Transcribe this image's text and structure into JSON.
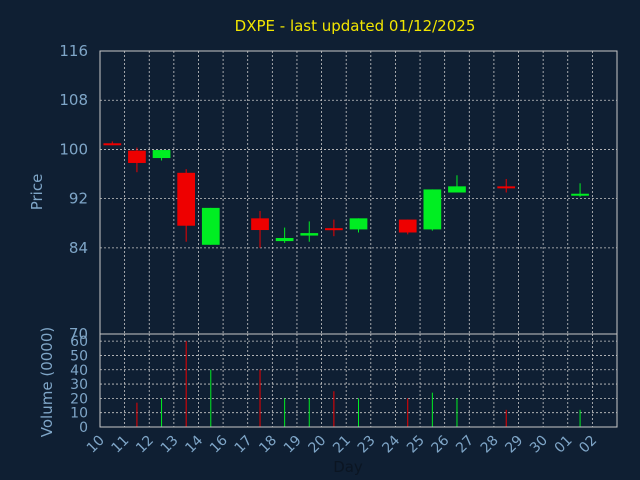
{
  "chart_data": {
    "type": "candlestick",
    "title": "DXPE - last updated 01/12/2025",
    "ylabel": "Price",
    "volume_label": "Volume (0000)",
    "xlabel": "Day",
    "ylim": [
      70,
      116
    ],
    "yticks": [
      70,
      84,
      92,
      100,
      108,
      116
    ],
    "volume_ylim": [
      0,
      65
    ],
    "volume_ticks": [
      0,
      10,
      20,
      30,
      40,
      50,
      60
    ],
    "days": [
      "10",
      "11",
      "12",
      "13",
      "14",
      "16",
      "17",
      "18",
      "19",
      "20",
      "21",
      "23",
      "24",
      "25",
      "26",
      "27",
      "28",
      "29",
      "30",
      "01",
      "02"
    ],
    "grid": true,
    "colors": {
      "up": "#00ee22",
      "down": "#ee0000",
      "background": "#0f1f33",
      "title": "#f2e600",
      "axis_text": "#7fa6c8",
      "grid": "#c8c8c8"
    },
    "candles": [
      {
        "day": "10",
        "open": 101.0,
        "high": 101.3,
        "low": 100.7,
        "close": 100.8,
        "volume": 0
      },
      {
        "day": "11",
        "open": 99.8,
        "high": 100.3,
        "low": 96.3,
        "close": 97.8,
        "volume": 17
      },
      {
        "day": "12",
        "open": 98.6,
        "high": 99.9,
        "low": 98.2,
        "close": 99.9,
        "volume": 20
      },
      {
        "day": "13",
        "open": 96.2,
        "high": 96.8,
        "low": 85.0,
        "close": 87.6,
        "volume": 60
      },
      {
        "day": "14",
        "open": 84.5,
        "high": 90.5,
        "low": 84.5,
        "close": 90.5,
        "volume": 40
      },
      {
        "day": "17",
        "open": 88.8,
        "high": 90.0,
        "low": 84.0,
        "close": 86.9,
        "volume": 40
      },
      {
        "day": "18",
        "open": 85.1,
        "high": 87.3,
        "low": 84.8,
        "close": 85.6,
        "volume": 20
      },
      {
        "day": "19",
        "open": 86.0,
        "high": 88.3,
        "low": 85.0,
        "close": 86.4,
        "volume": 20
      },
      {
        "day": "20",
        "open": 87.2,
        "high": 88.6,
        "low": 85.9,
        "close": 86.9,
        "volume": 25
      },
      {
        "day": "21",
        "open": 87.0,
        "high": 88.8,
        "low": 86.5,
        "close": 88.8,
        "volume": 20
      },
      {
        "day": "24",
        "open": 88.6,
        "high": 88.6,
        "low": 86.2,
        "close": 86.5,
        "volume": 20
      },
      {
        "day": "25",
        "open": 87.0,
        "high": 93.5,
        "low": 86.8,
        "close": 93.5,
        "volume": 24
      },
      {
        "day": "26",
        "open": 93.0,
        "high": 95.8,
        "low": 93.0,
        "close": 94.0,
        "volume": 20
      },
      {
        "day": "28",
        "open": 94.0,
        "high": 95.2,
        "low": 93.0,
        "close": 93.8,
        "volume": 12
      },
      {
        "day": "01",
        "open": 92.5,
        "high": 94.5,
        "low": 92.3,
        "close": 92.8,
        "volume": 12
      }
    ]
  }
}
